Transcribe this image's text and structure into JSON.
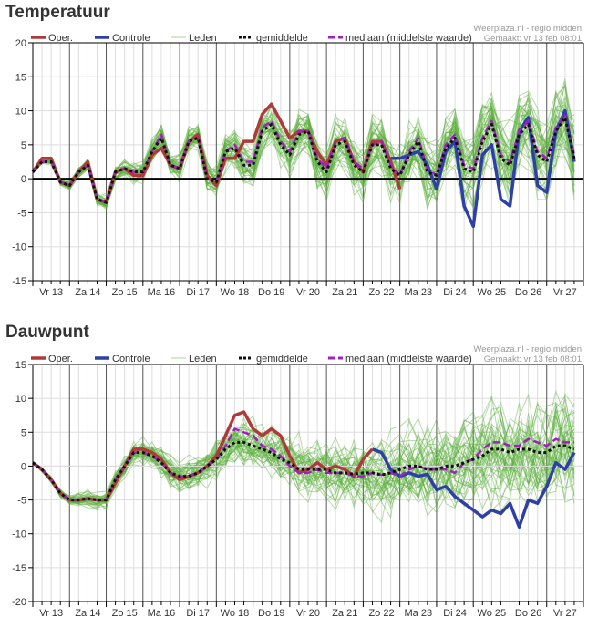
{
  "page": {
    "source": "Weerplaza.nl - regio midden",
    "made": "Gemaakt: vr 13 feb 08:01"
  },
  "legend": {
    "oper": "Oper.",
    "controle": "Controle",
    "leden": "Leden",
    "gemiddelde": "gemiddelde",
    "mediaan": "mediaan (middelste waarde)"
  },
  "colors": {
    "oper": "#b03a3a",
    "controle": "#2e3fa8",
    "leden": "#5aaf3c",
    "gemiddelde": "#111111",
    "mediaan": "#a020c0"
  },
  "chart_data": [
    {
      "type": "line",
      "title": "Temperatuur",
      "x_ticks": [
        "Vr 13",
        "Za 14",
        "Zo 15",
        "Ma 16",
        "Di 17",
        "Wo 18",
        "Do 19",
        "Vr 20",
        "Za 21",
        "Zo 22",
        "Ma 23",
        "Di 24",
        "Wo 25",
        "Do 26",
        "Vr 27"
      ],
      "ylim": [
        -15,
        20
      ],
      "y_ticks": [
        20,
        15,
        10,
        5,
        0,
        -5,
        -10,
        -15
      ],
      "grid": true,
      "x_step": "6h",
      "series": [
        {
          "name": "Oper.",
          "values": [
            1,
            3,
            3,
            -0.5,
            -1,
            1,
            2.5,
            -3,
            -3.5,
            1,
            1.5,
            0.5,
            0.5,
            3.5,
            4.5,
            2,
            1.5,
            5.5,
            6.5,
            0.5,
            -1,
            3,
            3,
            5.5,
            5.5,
            9.5,
            11,
            8.5,
            6,
            7,
            7,
            4,
            2,
            5.5,
            6,
            2.5,
            1,
            5.5,
            5.5,
            2.5,
            -1.5
          ]
        },
        {
          "name": "Controle",
          "values": [
            null,
            null,
            null,
            null,
            null,
            null,
            null,
            null,
            null,
            null,
            null,
            null,
            null,
            null,
            null,
            null,
            null,
            null,
            null,
            null,
            null,
            null,
            null,
            null,
            null,
            null,
            null,
            null,
            null,
            null,
            null,
            null,
            null,
            null,
            null,
            null,
            null,
            null,
            null,
            3,
            3,
            3.5,
            4,
            2,
            -1.5,
            4,
            5.5,
            -4,
            -7,
            3.5,
            5,
            -3,
            -4,
            7,
            9,
            -1,
            -2,
            7,
            10,
            2.5
          ]
        },
        {
          "name": "gemiddelde",
          "values": [
            1,
            2.5,
            2.5,
            -0.5,
            -1,
            1,
            2,
            -3,
            -3.5,
            1,
            1.5,
            1,
            1,
            4,
            6,
            2,
            1.5,
            5.5,
            6,
            0,
            -0.5,
            4,
            4.5,
            2,
            2,
            7,
            8,
            5,
            3.5,
            6.5,
            7,
            2.5,
            1,
            5,
            5.5,
            2,
            1,
            5,
            5,
            1.5,
            0.5,
            3.5,
            5.5,
            1,
            0.5,
            4.5,
            6,
            1.5,
            1,
            5.5,
            8,
            3,
            2,
            6.5,
            8,
            3.5,
            2.5,
            7,
            9,
            3
          ]
        },
        {
          "name": "mediaan",
          "values": [
            1,
            2.5,
            2.5,
            -0.5,
            -1,
            1,
            2,
            -3,
            -3.5,
            1,
            1.5,
            1,
            1,
            4,
            6.5,
            2,
            1.5,
            5.5,
            6,
            0,
            -0.5,
            4,
            5,
            2.5,
            2.5,
            7.5,
            8.5,
            5.5,
            4,
            7,
            7,
            3,
            1.5,
            5.5,
            6,
            2.5,
            1.5,
            5,
            5.5,
            2,
            0.5,
            4,
            6,
            1.5,
            0.5,
            5,
            6.5,
            2,
            1.5,
            6,
            8.5,
            3.5,
            2.5,
            7,
            8.5,
            4,
            3,
            7.5,
            9.5,
            3.5
          ]
        }
      ]
    },
    {
      "type": "line",
      "title": "Dauwpunt",
      "x_ticks": [
        "Vr 13",
        "Za 14",
        "Zo 15",
        "Ma 16",
        "Di 17",
        "Wo 18",
        "Do 19",
        "Vr 20",
        "Za 21",
        "Zo 22",
        "Ma 23",
        "Di 24",
        "Wo 25",
        "Do 26",
        "Vr 27"
      ],
      "ylim": [
        -20,
        15
      ],
      "y_ticks": [
        15,
        10,
        5,
        0,
        -5,
        -10,
        -15,
        -20
      ],
      "grid": true,
      "x_step": "6h",
      "series": [
        {
          "name": "Oper.",
          "values": [
            0.5,
            -0.5,
            -2,
            -4,
            -5,
            -5,
            -4.8,
            -5,
            -5,
            -2.5,
            0,
            2.5,
            2.5,
            2,
            1,
            -1,
            -2,
            -1.5,
            -1,
            0,
            1.5,
            4.5,
            7.5,
            8,
            5.5,
            4.5,
            5.5,
            4.5,
            1.5,
            -1,
            -0.5,
            0.5,
            -0.5,
            0,
            -0.5,
            -1.5,
            1,
            2.5
          ]
        },
        {
          "name": "Controle",
          "values": [
            null,
            null,
            null,
            null,
            null,
            null,
            null,
            null,
            null,
            null,
            null,
            null,
            null,
            null,
            null,
            null,
            null,
            null,
            null,
            null,
            null,
            null,
            null,
            null,
            null,
            null,
            null,
            null,
            null,
            null,
            null,
            null,
            null,
            null,
            null,
            null,
            null,
            2.5,
            2,
            -0.5,
            -1.5,
            -1,
            -1.5,
            -1.2,
            -3.5,
            -3,
            -4.5,
            -5.5,
            -6.5,
            -7.5,
            -6.5,
            -7,
            -5.5,
            -9,
            -5,
            -5.5,
            -3,
            0.5,
            -0.5,
            2
          ]
        },
        {
          "name": "gemiddelde",
          "values": [
            0.5,
            -0.5,
            -2,
            -4,
            -5,
            -5,
            -4.8,
            -5,
            -5,
            -2,
            0,
            2,
            2,
            1.5,
            0.5,
            -1,
            -1.5,
            -1.5,
            -1,
            0,
            1,
            2.5,
            3.5,
            3.5,
            3,
            2.5,
            2,
            1,
            0.5,
            -0.5,
            -0.5,
            -0.5,
            -0.5,
            -1,
            -1,
            -1.2,
            -1,
            -1,
            -1.3,
            -1,
            -0.5,
            0,
            0,
            -0.5,
            -0.5,
            0,
            0,
            0.5,
            1,
            1.5,
            2.5,
            2.5,
            2,
            2.5,
            2.5,
            2,
            2,
            3,
            3,
            2.5
          ]
        },
        {
          "name": "mediaan",
          "values": [
            0.5,
            -0.5,
            -2,
            -4,
            -5,
            -5,
            -4.8,
            -5,
            -5,
            -2,
            0,
            2,
            2,
            1.5,
            0.5,
            -1,
            -1.5,
            -1.5,
            -1,
            0,
            1,
            3,
            5.5,
            5,
            4.5,
            3,
            2.5,
            1.5,
            0,
            -1,
            -1,
            -0.5,
            -1,
            -1,
            -1,
            -1.5,
            -1.5,
            -1,
            -1.3,
            -1,
            -1.5,
            -0.5,
            0,
            -0.5,
            -0.5,
            -0.5,
            -1,
            0.5,
            1,
            2.5,
            3.5,
            3.5,
            3,
            3,
            4,
            3.5,
            3,
            4,
            3.5,
            3.5
          ]
        }
      ]
    }
  ]
}
